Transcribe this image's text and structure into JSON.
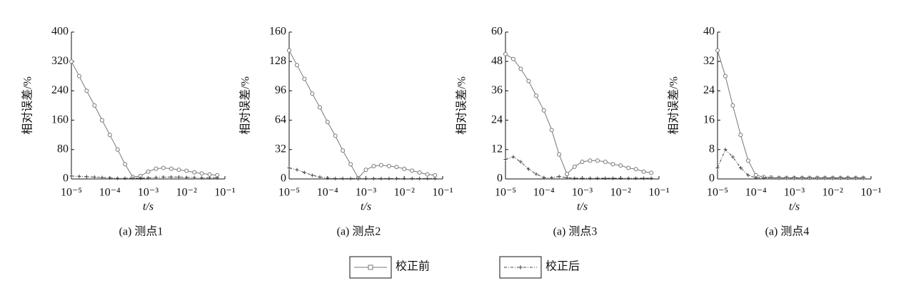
{
  "chart_data": [
    {
      "type": "line",
      "caption": "(a) 测点1",
      "ylabel": "相对误差/%",
      "xlabel": "t/s",
      "xlog": true,
      "xlim": [
        1e-05,
        0.1
      ],
      "xticks": [
        {
          "value": 1e-05,
          "label": "10⁻⁵"
        },
        {
          "value": 0.0001,
          "label": "10⁻⁴"
        },
        {
          "value": 0.001,
          "label": "10⁻³"
        },
        {
          "value": 0.01,
          "label": "10⁻²"
        },
        {
          "value": 0.1,
          "label": "10⁻¹"
        }
      ],
      "ylim": [
        0,
        400
      ],
      "yticks": [
        0,
        80,
        160,
        240,
        320,
        400
      ],
      "x": [
        1e-05,
        1.6e-05,
        2.5e-05,
        4e-05,
        6.3e-05,
        0.0001,
        0.00016,
        0.00025,
        0.0004,
        0.00063,
        0.001,
        0.0016,
        0.0025,
        0.004,
        0.0063,
        0.01,
        0.016,
        0.025,
        0.04,
        0.063
      ],
      "series": [
        {
          "color": "#777777",
          "marker": "circle",
          "values": [
            320,
            280,
            240,
            200,
            160,
            120,
            80,
            40,
            5,
            8,
            20,
            28,
            30,
            28,
            25,
            22,
            18,
            15,
            12,
            10
          ]
        },
        {
          "color": "#444444",
          "marker": "plus",
          "values": [
            8,
            7,
            6,
            5,
            4,
            3,
            2,
            2,
            2,
            2,
            3,
            4,
            5,
            5,
            5,
            4,
            4,
            3,
            3,
            3
          ]
        }
      ]
    },
    {
      "type": "line",
      "caption": "(a) 测点2",
      "ylabel": "相对误差/%",
      "xlabel": "t/s",
      "xlog": true,
      "xlim": [
        1e-05,
        0.1
      ],
      "xticks": [
        {
          "value": 1e-05,
          "label": "10⁻⁵"
        },
        {
          "value": 0.0001,
          "label": "10⁻⁴"
        },
        {
          "value": 0.001,
          "label": "10⁻³"
        },
        {
          "value": 0.01,
          "label": "10⁻²"
        },
        {
          "value": 0.1,
          "label": "10⁻¹"
        }
      ],
      "ylim": [
        0,
        160
      ],
      "yticks": [
        0,
        32,
        64,
        96,
        128,
        160
      ],
      "x": [
        1e-05,
        1.6e-05,
        2.5e-05,
        4e-05,
        6.3e-05,
        0.0001,
        0.00016,
        0.00025,
        0.0004,
        0.00063,
        0.001,
        0.0016,
        0.0025,
        0.004,
        0.0063,
        0.01,
        0.016,
        0.025,
        0.04,
        0.063
      ],
      "series": [
        {
          "color": "#777777",
          "marker": "circle",
          "values": [
            140,
            124,
            109,
            93,
            78,
            62,
            47,
            31,
            16,
            1,
            10,
            14,
            15,
            14,
            13,
            11,
            9,
            7,
            5,
            4
          ]
        },
        {
          "color": "#444444",
          "marker": "plus",
          "values": [
            12,
            10,
            7,
            4,
            2,
            1,
            0.5,
            0.5,
            0.5,
            0.5,
            0.5,
            0.5,
            0.5,
            0.5,
            0.5,
            0.5,
            0.5,
            0.5,
            0.5,
            0.5
          ]
        }
      ]
    },
    {
      "type": "line",
      "caption": "(a) 测点3",
      "ylabel": "相对误差/%",
      "xlabel": "t/s",
      "xlog": true,
      "xlim": [
        1e-05,
        0.1
      ],
      "xticks": [
        {
          "value": 1e-05,
          "label": "10⁻⁵"
        },
        {
          "value": 0.0001,
          "label": "10⁻⁴"
        },
        {
          "value": 0.001,
          "label": "10⁻³"
        },
        {
          "value": 0.01,
          "label": "10⁻²"
        },
        {
          "value": 0.1,
          "label": "10⁻¹"
        }
      ],
      "ylim": [
        0,
        60
      ],
      "yticks": [
        0,
        12,
        24,
        36,
        48,
        60
      ],
      "x": [
        1e-05,
        1.6e-05,
        2.5e-05,
        4e-05,
        6.3e-05,
        0.0001,
        0.00016,
        0.00025,
        0.0004,
        0.00063,
        0.001,
        0.0016,
        0.0025,
        0.004,
        0.0063,
        0.01,
        0.016,
        0.025,
        0.04,
        0.063
      ],
      "series": [
        {
          "color": "#777777",
          "marker": "circle",
          "values": [
            51,
            49,
            45,
            40,
            34,
            28,
            20,
            10,
            2,
            5,
            7,
            7.5,
            7.5,
            7,
            6,
            5.5,
            4.5,
            4,
            3,
            2.5
          ]
        },
        {
          "color": "#444444",
          "marker": "plus",
          "values": [
            8,
            9,
            7,
            4,
            2,
            0.5,
            0.5,
            1,
            0.5,
            0.3,
            0.3,
            0.3,
            0.3,
            0.3,
            0.3,
            0.3,
            0.3,
            0.3,
            0.3,
            0.3
          ]
        }
      ]
    },
    {
      "type": "line",
      "caption": "(a) 测点4",
      "ylabel": "相对误差/%",
      "xlabel": "t/s",
      "xlog": true,
      "xlim": [
        1e-05,
        0.1
      ],
      "xticks": [
        {
          "value": 1e-05,
          "label": "10⁻⁵"
        },
        {
          "value": 0.0001,
          "label": "10⁻⁴"
        },
        {
          "value": 0.001,
          "label": "10⁻³"
        },
        {
          "value": 0.01,
          "label": "10⁻²"
        },
        {
          "value": 0.1,
          "label": "10⁻¹"
        }
      ],
      "ylim": [
        0,
        40
      ],
      "yticks": [
        0,
        8,
        16,
        24,
        32,
        40
      ],
      "x": [
        1e-05,
        1.6e-05,
        2.5e-05,
        4e-05,
        6.3e-05,
        0.0001,
        0.00016,
        0.00025,
        0.0004,
        0.00063,
        0.001,
        0.0016,
        0.0025,
        0.004,
        0.0063,
        0.01,
        0.016,
        0.025,
        0.04,
        0.063
      ],
      "series": [
        {
          "color": "#777777",
          "marker": "circle",
          "values": [
            35,
            28,
            20,
            12,
            5,
            1,
            0.5,
            0.4,
            0.3,
            0.3,
            0.3,
            0.3,
            0.3,
            0.3,
            0.3,
            0.3,
            0.3,
            0.3,
            0.3,
            0.3
          ]
        },
        {
          "color": "#444444",
          "marker": "plus",
          "values": [
            3,
            8,
            6,
            3,
            1,
            0.3,
            0.3,
            0.3,
            0.3,
            0.3,
            0.3,
            0.3,
            0.3,
            0.3,
            0.3,
            0.3,
            0.3,
            0.3,
            0.3,
            0.3
          ]
        }
      ]
    }
  ],
  "legend": [
    {
      "name": "校正前",
      "color": "#777777",
      "marker": "circle"
    },
    {
      "name": "校正后",
      "color": "#444444",
      "marker": "plus"
    }
  ]
}
